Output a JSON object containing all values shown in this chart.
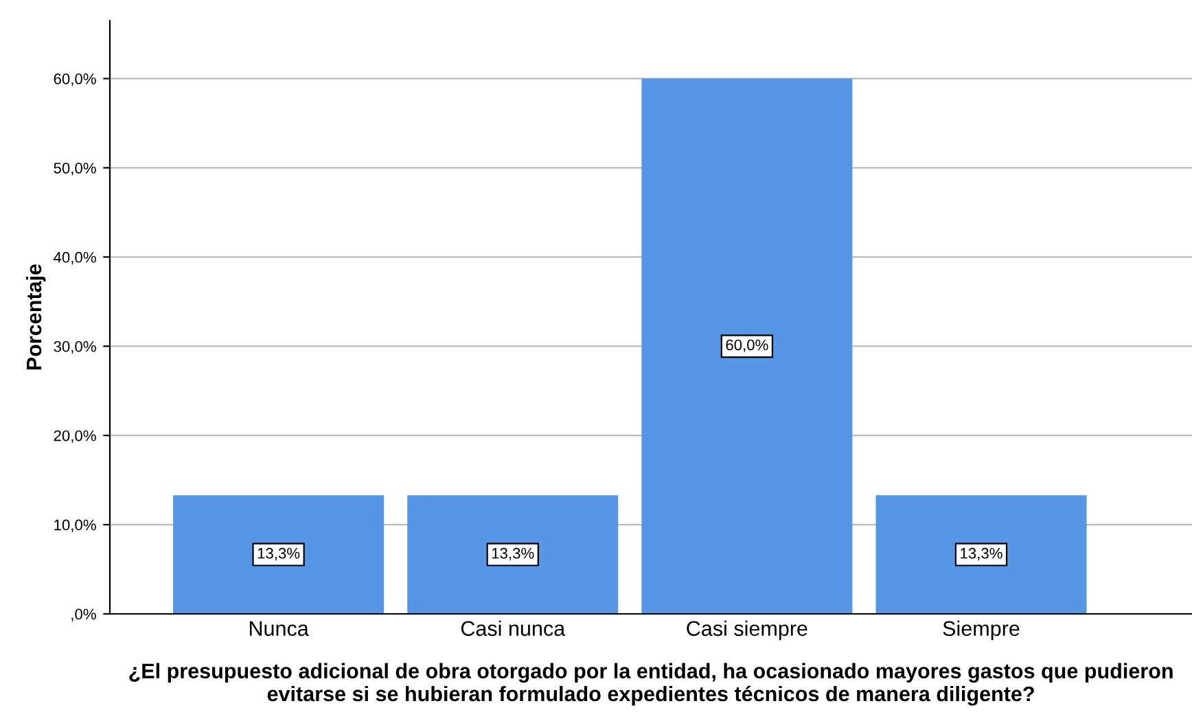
{
  "chart_data": {
    "type": "bar",
    "xlabel": "¿El presupuesto adicional de obra otorgado por la entidad, ha ocasionado mayores gastos que pudieron evitarse si se hubieran formulado expedientes técnicos de manera diligente?",
    "ylabel": "Porcentaje",
    "categories": [
      "Nunca",
      "Casi nunca",
      "Casi siempre",
      "Siempre"
    ],
    "values": [
      13.3,
      13.3,
      60.0,
      13.3
    ],
    "value_labels": [
      "13,3%",
      "13,3%",
      "60,0%",
      "13,3%"
    ],
    "color": "#5596e6",
    "ylim": [
      0,
      66.5
    ],
    "yticks": [
      {
        "value": 0,
        "label": ",0%"
      },
      {
        "value": 10,
        "label": "10,0%"
      },
      {
        "value": 20,
        "label": "20,0%"
      },
      {
        "value": 30,
        "label": "30,0%"
      },
      {
        "value": 40,
        "label": "40,0%"
      },
      {
        "value": 50,
        "label": "50,0%"
      },
      {
        "value": 60,
        "label": "60,0%"
      }
    ],
    "grid": "y"
  }
}
